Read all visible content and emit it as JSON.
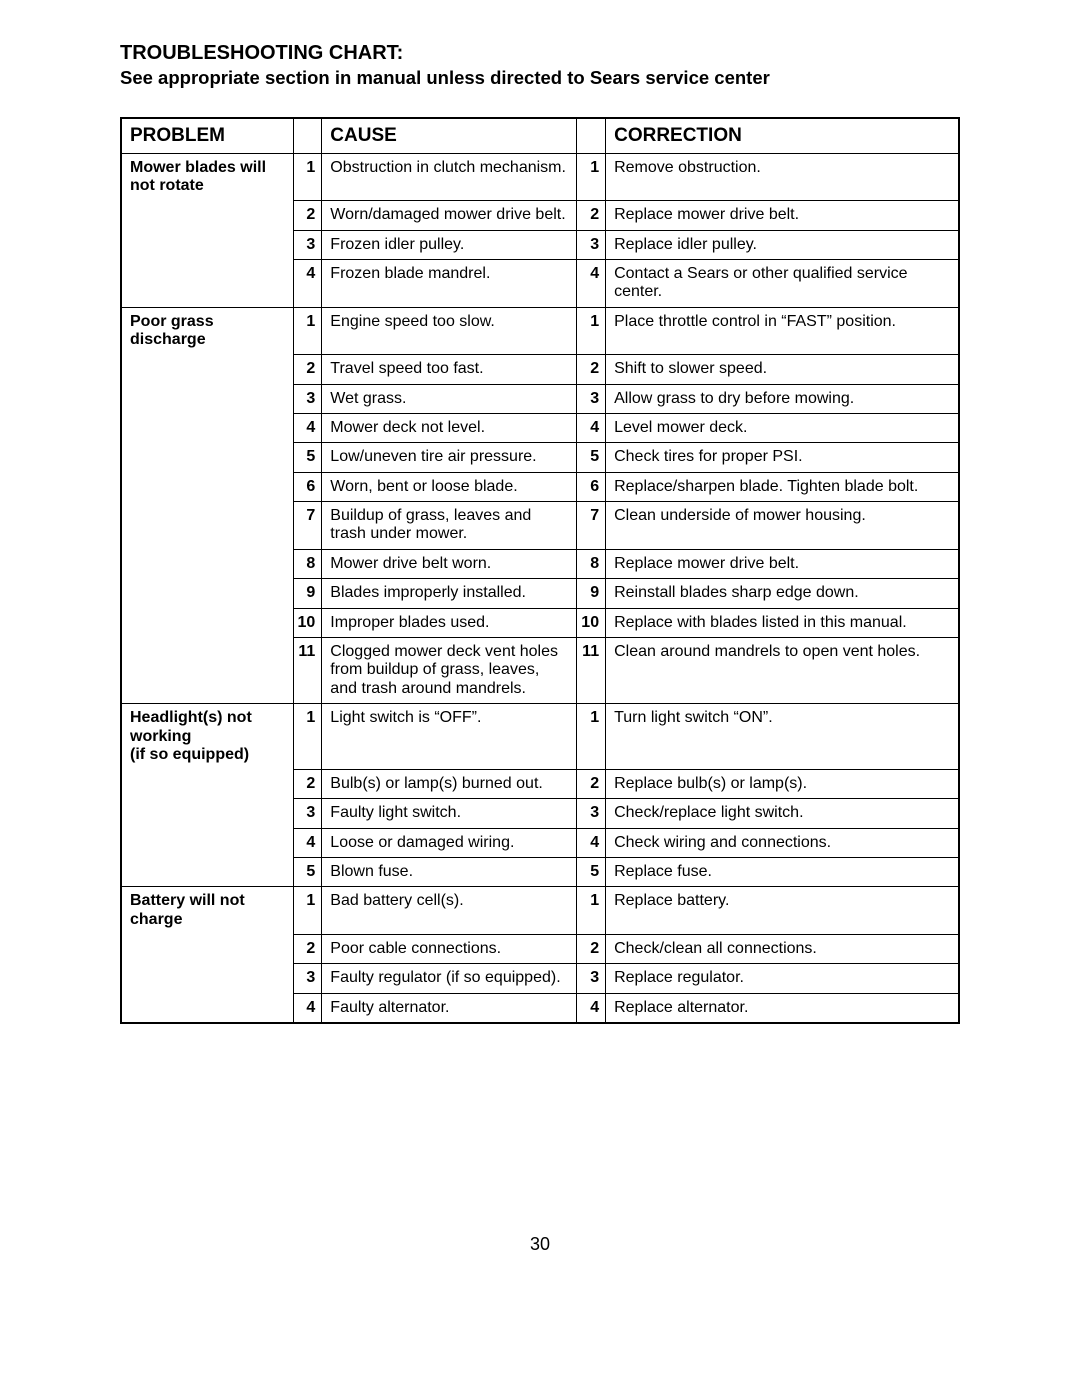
{
  "title": "TROUBLESHOOTING CHART:",
  "subtitle": "See appropriate section in manual unless directed to Sears service center",
  "page_number": "30",
  "headers": {
    "problem": "PROBLEM",
    "cause": "CAUSE",
    "correction": "CORRECTION"
  },
  "sections": [
    {
      "problem": "Mower blades will not rotate",
      "rows": [
        {
          "n": "1",
          "cause": "Obstruction in clutch mechanism.",
          "correction": "Remove obstruction."
        },
        {
          "n": "2",
          "cause": "Worn/damaged mower drive belt.",
          "correction": "Replace mower drive belt."
        },
        {
          "n": "3",
          "cause": "Frozen idler pulley.",
          "correction": "Replace idler pulley."
        },
        {
          "n": "4",
          "cause": "Frozen blade mandrel.",
          "correction": "Contact a Sears or other qualified service center."
        }
      ]
    },
    {
      "problem": "Poor grass discharge",
      "rows": [
        {
          "n": "1",
          "cause": "Engine speed too slow.",
          "correction": "Place throttle control in “FAST” position."
        },
        {
          "n": "2",
          "cause": "Travel speed too fast.",
          "correction": "Shift to slower speed."
        },
        {
          "n": "3",
          "cause": "Wet grass.",
          "correction": "Allow grass to dry before mowing."
        },
        {
          "n": "4",
          "cause": "Mower deck not level.",
          "correction": "Level mower deck."
        },
        {
          "n": "5",
          "cause": "Low/uneven tire air pressure.",
          "correction": "Check tires for proper PSI."
        },
        {
          "n": "6",
          "cause": "Worn, bent or loose blade.",
          "correction": "Replace/sharpen blade. Tighten blade bolt."
        },
        {
          "n": "7",
          "cause": "Buildup of grass, leaves and trash under mower.",
          "correction": "Clean underside of mower housing."
        },
        {
          "n": "8",
          "cause": "Mower drive belt worn.",
          "correction": "Replace mower drive belt."
        },
        {
          "n": "9",
          "cause": "Blades improperly installed.",
          "correction": "Reinstall blades sharp edge down."
        },
        {
          "n": "10",
          "cause": "Improper blades used.",
          "correction": "Replace with blades listed in this manual."
        },
        {
          "n": "11",
          "cause": "Clogged mower deck vent holes from buildup of grass, leaves, and trash around mandrels.",
          "correction": "Clean around mandrels to open vent holes."
        }
      ]
    },
    {
      "problem": "Headlight(s) not working\n(if so equipped)",
      "rows": [
        {
          "n": "1",
          "cause": "Light switch is “OFF”.",
          "correction": "Turn light switch “ON”."
        },
        {
          "n": "2",
          "cause": "Bulb(s) or lamp(s) burned out.",
          "correction": "Replace bulb(s) or lamp(s)."
        },
        {
          "n": "3",
          "cause": "Faulty light switch.",
          "correction": "Check/replace light switch."
        },
        {
          "n": "4",
          "cause": "Loose or damaged wiring.",
          "correction": "Check wiring and connections."
        },
        {
          "n": "5",
          "cause": "Blown fuse.",
          "correction": "Replace fuse."
        }
      ]
    },
    {
      "problem": "Battery will not charge",
      "rows": [
        {
          "n": "1",
          "cause": "Bad battery cell(s).",
          "correction": "Replace battery."
        },
        {
          "n": "2",
          "cause": "Poor cable connections.",
          "correction": "Check/clean all connections."
        },
        {
          "n": "3",
          "cause": "Faulty regulator (if so equipped).",
          "correction": "Replace regulator."
        },
        {
          "n": "4",
          "cause": "Faulty alternator.",
          "correction": "Replace alternator."
        }
      ]
    }
  ]
}
